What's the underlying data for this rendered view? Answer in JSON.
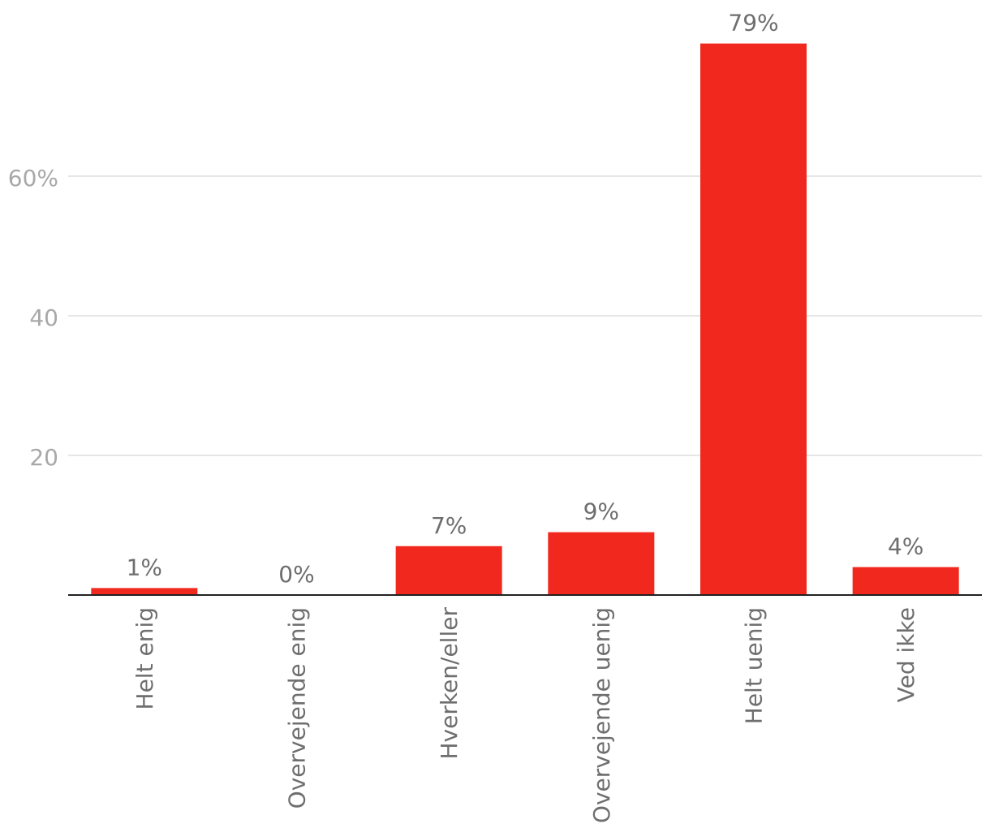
{
  "chart_data": {
    "type": "bar",
    "categories": [
      "Helt enig",
      "Overvejende enig",
      "Hverken/eller",
      "Overvejende uenig",
      "Helt uenig",
      "Ved ikke"
    ],
    "values": [
      1,
      0,
      7,
      9,
      79,
      4
    ],
    "value_labels": [
      "1%",
      "0%",
      "7%",
      "9%",
      "79%",
      "4%"
    ],
    "y_ticks": [
      {
        "value": 20,
        "label": "20"
      },
      {
        "value": 40,
        "label": "40"
      },
      {
        "value": 60,
        "label": "60%"
      }
    ],
    "ylim": [
      0,
      80
    ],
    "grid": true,
    "legend": "none",
    "colors": {
      "bar": "#f0281e"
    }
  }
}
